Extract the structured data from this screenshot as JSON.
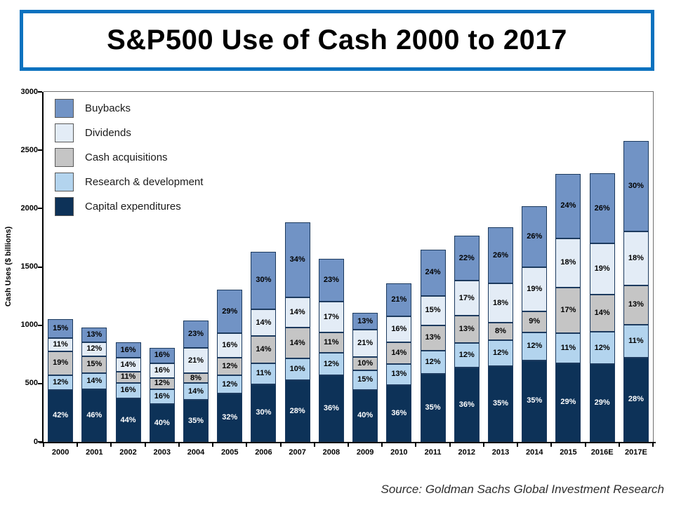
{
  "title": "S&P500 Use of Cash 2000 to 2017",
  "source": "Source:  Goldman Sachs Global Investment Research",
  "chart_data": {
    "type": "bar",
    "subtype": "stacked-percent-labeled",
    "title": "S&P500 Use of Cash 2000 to 2017",
    "ylabel": "Cash Uses ($ billions)",
    "ylim": [
      0,
      3000
    ],
    "yticks": [
      0,
      500,
      1000,
      1500,
      2000,
      2500,
      3000
    ],
    "grid": false,
    "legend_position": "top-left-inside",
    "categories": [
      "2000",
      "2001",
      "2002",
      "2003",
      "2004",
      "2005",
      "2006",
      "2007",
      "2008",
      "2009",
      "2010",
      "2011",
      "2012",
      "2013",
      "2014",
      "2015",
      "2016E",
      "2017E"
    ],
    "totals_billions": [
      1050,
      980,
      855,
      805,
      1040,
      1305,
      1630,
      1880,
      1570,
      1105,
      1360,
      1650,
      1770,
      1840,
      2020,
      2300,
      2300,
      2580
    ],
    "series": [
      {
        "name": "Capital expenditures",
        "color": "#0d3258",
        "label_color": "#ffffff",
        "pct": [
          42,
          46,
          44,
          40,
          35,
          32,
          30,
          28,
          36,
          40,
          36,
          35,
          36,
          35,
          35,
          29,
          29,
          28
        ]
      },
      {
        "name": "Research & development",
        "color": "#b3d4ee",
        "label_color": "#000000",
        "pct": [
          12,
          14,
          16,
          16,
          14,
          12,
          11,
          10,
          12,
          15,
          13,
          12,
          12,
          12,
          12,
          11,
          12,
          11
        ]
      },
      {
        "name": "Cash acquisitions",
        "color": "#c5c5c5",
        "label_color": "#000000",
        "pct": [
          19,
          15,
          11,
          12,
          8,
          12,
          14,
          14,
          11,
          10,
          14,
          13,
          13,
          8,
          9,
          17,
          14,
          13
        ]
      },
      {
        "name": "Dividends",
        "color": "#e3ecf6",
        "label_color": "#000000",
        "pct": [
          11,
          12,
          14,
          16,
          21,
          16,
          14,
          14,
          17,
          21,
          16,
          15,
          17,
          18,
          19,
          18,
          19,
          18
        ]
      },
      {
        "name": "Buybacks",
        "color": "#7193c5",
        "label_color": "#000000",
        "pct": [
          15,
          13,
          16,
          16,
          23,
          29,
          30,
          34,
          23,
          13,
          21,
          24,
          22,
          26,
          26,
          24,
          26,
          30
        ]
      }
    ],
    "legend": [
      "Buybacks",
      "Dividends",
      "Cash acquisitions",
      "Research & development",
      "Capital expenditures"
    ]
  }
}
